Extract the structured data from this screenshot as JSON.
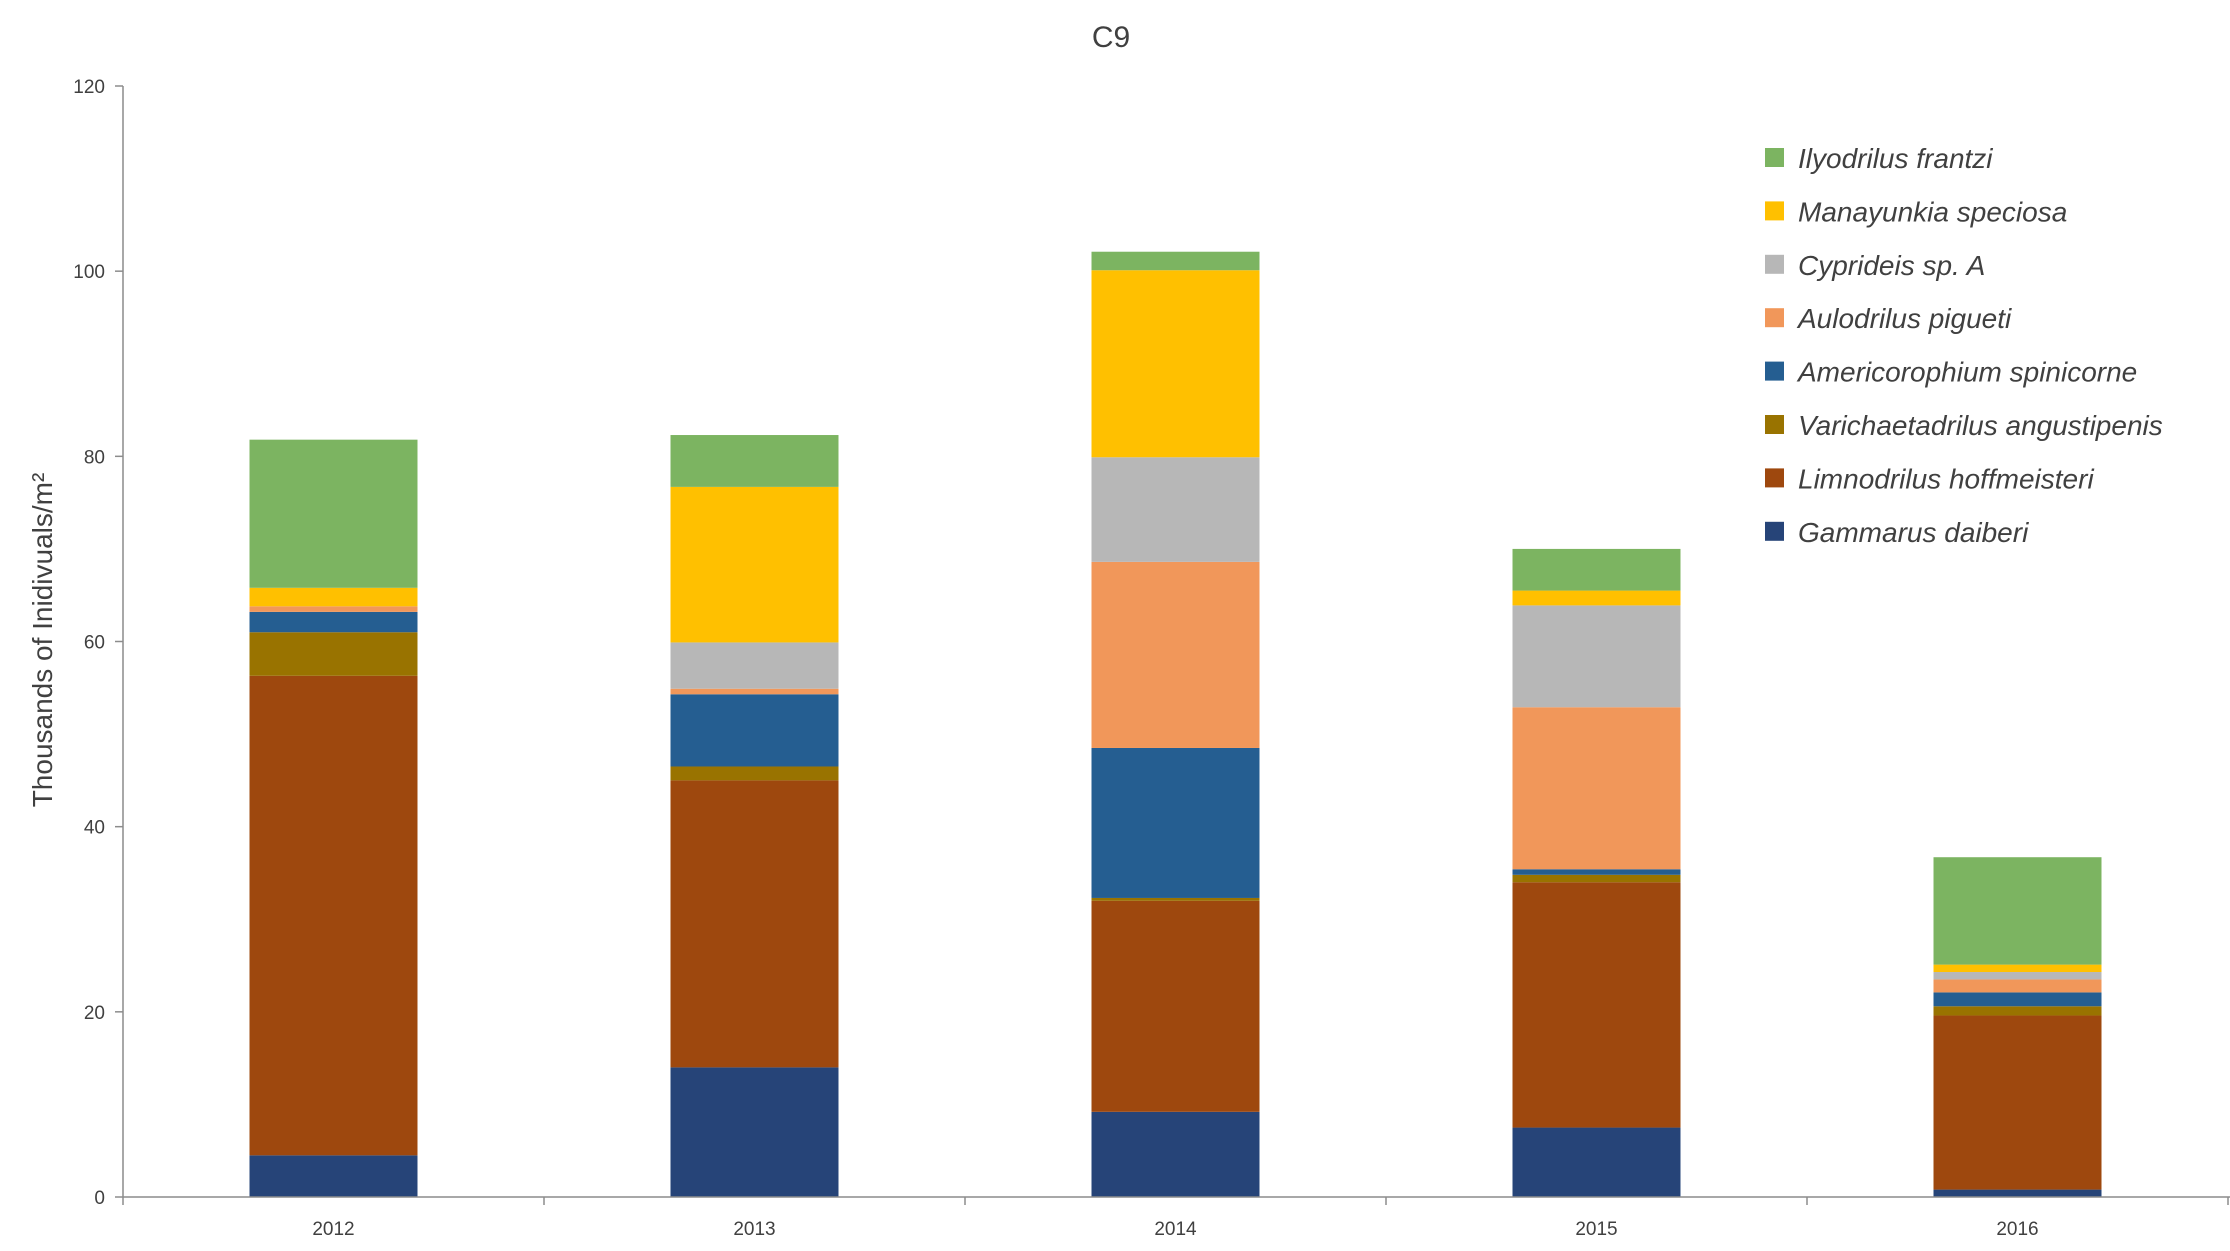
{
  "chart_data": {
    "type": "bar",
    "stacked": true,
    "title": "C9",
    "xlabel": "",
    "ylabel": "Thousands of Inidivuals/m²",
    "ylim": [
      0,
      120
    ],
    "yticks": [
      0,
      20,
      40,
      60,
      80,
      100,
      120
    ],
    "categories": [
      "2012",
      "2013",
      "2014",
      "2015",
      "2016"
    ],
    "grid": false,
    "legend_position": "top-right",
    "series": [
      {
        "name": "Gammarus daiberi",
        "color": "#264478",
        "values": [
          4.5,
          14,
          9.2,
          7.5,
          0.8
        ]
      },
      {
        "name": "Limnodrilus hoffmeisteri",
        "color": "#9e480e",
        "values": [
          51.8,
          31,
          22.8,
          26.5,
          18.8
        ]
      },
      {
        "name": "Varichaetadrilus angustipenis",
        "color": "#997300",
        "values": [
          4.7,
          1.5,
          0.3,
          0.8,
          1
        ]
      },
      {
        "name": "Americorophium spinicorne",
        "color": "#255e91",
        "values": [
          2.2,
          7.8,
          16.2,
          0.6,
          1.5
        ]
      },
      {
        "name": "Aulodrilus pigueti",
        "color": "#f1975a",
        "values": [
          0.6,
          0.6,
          20.1,
          17.5,
          1.4
        ]
      },
      {
        "name": "Cyprideis sp. A",
        "color": "#b7b7b7",
        "values": [
          0,
          5,
          11.3,
          11,
          0.8
        ]
      },
      {
        "name": "Manayunkia speciosa",
        "color": "#ffc000",
        "values": [
          2,
          16.8,
          20.2,
          1.6,
          0.8
        ]
      },
      {
        "name": "Ilyodrilus frantzi",
        "color": "#7cb461",
        "values": [
          16,
          5.6,
          2,
          4.5,
          11.6
        ]
      }
    ],
    "legend_order": [
      "Ilyodrilus frantzi",
      "Manayunkia speciosa",
      "Cyprideis sp. A",
      "Aulodrilus pigueti",
      "Americorophium spinicorne",
      "Varichaetadrilus angustipenis",
      "Limnodrilus hoffmeisteri",
      "Gammarus daiberi"
    ]
  }
}
